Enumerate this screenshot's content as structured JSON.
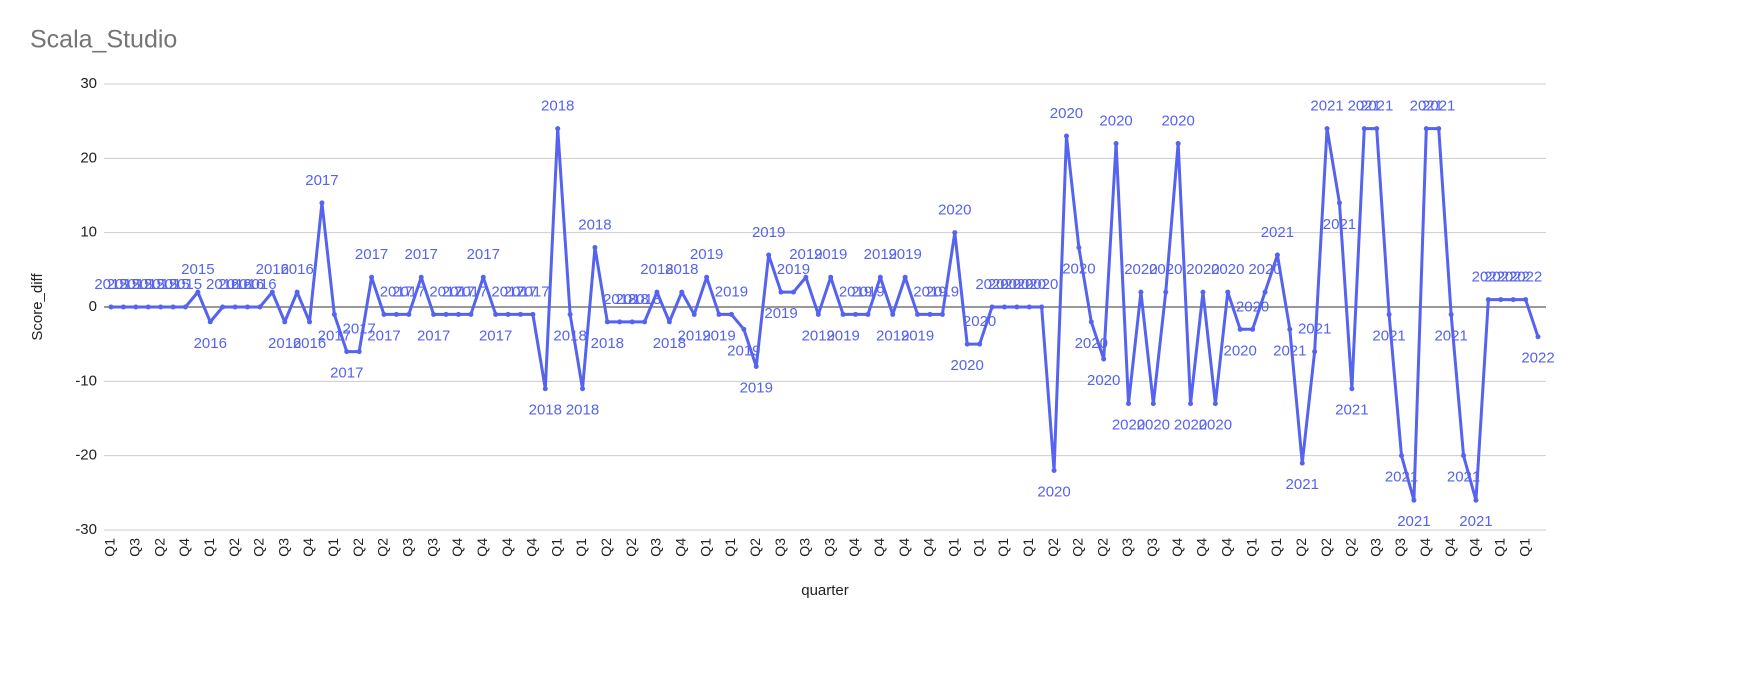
{
  "chart_data": {
    "type": "line",
    "title": "Scala_Studio",
    "x_label": "quarter",
    "y_label": "Score_diff",
    "categories": [
      "Q1",
      null,
      "Q3",
      null,
      "Q2",
      null,
      "Q4",
      null,
      "Q1",
      null,
      "Q2",
      null,
      "Q2",
      null,
      "Q3",
      null,
      "Q4",
      null,
      "Q1",
      null,
      "Q2",
      null,
      "Q2",
      null,
      "Q3",
      null,
      "Q3",
      null,
      "Q4",
      null,
      "Q4",
      null,
      "Q4",
      null,
      "Q4",
      null,
      "Q1",
      null,
      "Q1",
      null,
      "Q2",
      null,
      "Q2",
      null,
      "Q3",
      null,
      "Q4",
      null,
      "Q1",
      null,
      "Q1",
      null,
      "Q2",
      null,
      "Q3",
      null,
      "Q3",
      null,
      "Q3",
      null,
      "Q4",
      null,
      "Q4",
      null,
      "Q4",
      null,
      "Q4",
      null,
      "Q1",
      null,
      "Q1",
      null,
      "Q1",
      null,
      "Q1",
      null,
      "Q2",
      null,
      "Q2",
      null,
      "Q2",
      null,
      "Q3",
      null,
      "Q3",
      null,
      "Q4",
      null,
      "Q4",
      null,
      "Q4",
      null,
      "Q1",
      null,
      "Q1",
      null,
      "Q2",
      null,
      "Q2",
      null,
      "Q2",
      null,
      "Q3",
      null,
      "Q3",
      null,
      "Q4",
      null,
      "Q4",
      null,
      "Q4",
      null,
      "Q1",
      null,
      "Q1",
      null
    ],
    "series": [
      {
        "name": "Score_diff",
        "color": "#5563ee",
        "values": [
          0,
          0,
          0,
          0,
          0,
          0,
          0,
          2,
          -2,
          0,
          0,
          0,
          0,
          2,
          -2,
          2,
          -2,
          14,
          -1,
          -6,
          -6,
          4,
          -1,
          -1,
          -1,
          4,
          -1,
          -1,
          -1,
          -1,
          4,
          -1,
          -1,
          -1,
          -1,
          -11,
          24,
          -1,
          -11,
          8,
          -2,
          -2,
          -2,
          -2,
          2,
          -2,
          2,
          -1,
          4,
          -1,
          -1,
          -3,
          -8,
          7,
          2,
          2,
          4,
          -1,
          4,
          -1,
          -1,
          -1,
          4,
          -1,
          4,
          -1,
          -1,
          -1,
          10,
          -5,
          -5,
          0,
          0,
          0,
          0,
          0,
          -22,
          23,
          8,
          -2,
          -7,
          22,
          -13,
          2,
          -13,
          2,
          22,
          -13,
          2,
          -13,
          2,
          -3,
          -3,
          2,
          7,
          -3,
          -21,
          -6,
          24,
          14,
          -11,
          24,
          24,
          -1,
          -20,
          -26,
          24,
          24,
          -1,
          -20,
          -26,
          1,
          1,
          1,
          1,
          -4
        ],
        "point_labels": [
          "2015",
          "2015",
          "2015",
          "2015",
          "2015",
          "2015",
          "2015",
          "2015",
          "2016",
          "2016",
          "2016",
          "2016",
          "2016",
          "2016",
          "2016",
          "2016",
          "2016",
          "2017",
          "2017",
          "2017",
          "2017",
          "2017",
          "2017",
          "2017",
          "2017",
          "2017",
          "2017",
          "2017",
          "2017",
          "2017",
          "2017",
          "2017",
          "2017",
          "2017",
          "2017",
          "2018",
          "2018",
          "2018",
          "2018",
          "2018",
          "2018",
          "2018",
          "2018",
          "2018",
          "2018",
          "2018",
          "2018",
          "2019",
          "2019",
          "2019",
          "2019",
          "2019",
          "2019",
          "2019",
          "2019",
          "2019",
          "2019",
          "2019",
          "2019",
          "2019",
          "2019",
          "2019",
          "2019",
          "2019",
          "2019",
          "2019",
          "2019",
          "2019",
          "2020",
          "2020",
          "2020",
          "2020",
          "2020",
          "2020",
          "2020",
          "2020",
          "2020",
          "2020",
          "2020",
          "2020",
          "2020",
          "2020",
          "2020",
          "2020",
          "2020",
          "2020",
          "2020",
          "2020",
          "2020",
          "2020",
          "2020",
          "2020",
          "2020",
          "2020",
          "2021",
          "2021",
          "2021",
          "2021",
          "2021",
          "2021",
          "2021",
          "2021",
          "2021",
          "2021",
          "2021",
          "2021",
          "2021",
          "2021",
          "2021",
          "2021",
          "2021",
          "2022",
          "2022",
          "2022",
          "2022",
          "2022"
        ]
      }
    ],
    "ylim": [
      -30,
      30
    ],
    "yticks": [
      -30,
      -20,
      -10,
      0,
      10,
      20,
      30
    ],
    "grid": true
  }
}
